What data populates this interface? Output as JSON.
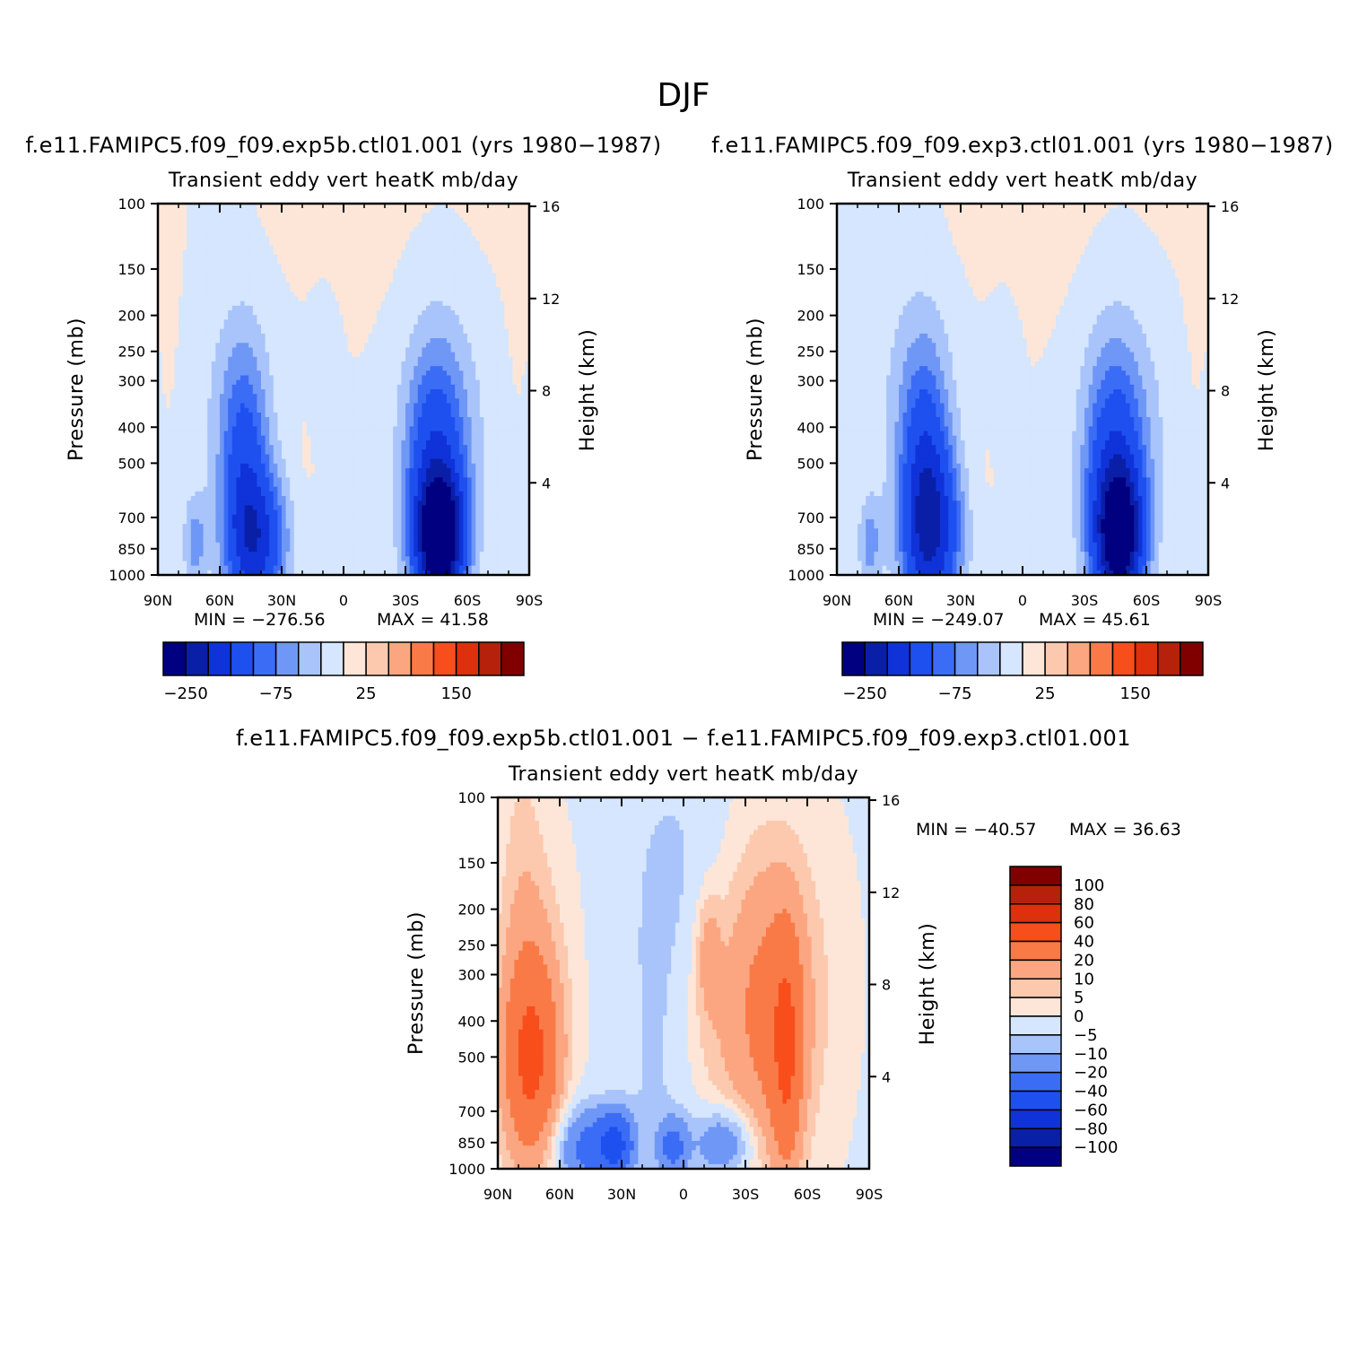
{
  "figure_title": "DJF",
  "colors": {
    "neg": [
      "#000080",
      "#0a1fa8",
      "#0f33d8",
      "#1e50f0",
      "#3b6cf5",
      "#6f97f6",
      "#a9c4fb",
      "#d5e6fe"
    ],
    "pos": [
      "#fde6d8",
      "#fcc9ae",
      "#fba680",
      "#fa7a47",
      "#f84e1c",
      "#dd300c",
      "#b5210a",
      "#800000"
    ]
  },
  "chart_data": [
    {
      "type": "heatmap",
      "name": "control",
      "title": "f.e11.FAMIPC5.f09_f09.exp5b.ctl01.001 (yrs 1980-1987)",
      "title_display": "f.e11.FAMIPC5.f09_f09.exp5b.ctl01.001 (yrs 1980−1987)",
      "variable": "Transient eddy vert heatK mb/day",
      "ylabel": "Pressure (mb)",
      "ylabel_right": "Height (km)",
      "x_ticks": [
        "90N",
        "60N",
        "30N",
        "0",
        "30S",
        "60S",
        "90S"
      ],
      "x_range": [
        90,
        -90
      ],
      "y_ticks": [
        100,
        150,
        200,
        250,
        300,
        400,
        500,
        700,
        850,
        1000
      ],
      "y_range": [
        100,
        1000
      ],
      "y_scale": "log",
      "height_ticks": [
        16,
        12,
        8,
        4
      ],
      "min_text": "MIN = −276.56",
      "max_text": "MAX = 41.58",
      "min": -276.56,
      "max": 41.58,
      "colorbar_labels": [
        "−250",
        "−75",
        "25",
        "150"
      ],
      "colorbar_orientation": "horizontal",
      "colorbar_levels": 16,
      "features": [
        {
          "lat": -47,
          "p": 800,
          "sigma_lat": 8,
          "sigma_lnp": 0.28,
          "value": -280
        },
        {
          "lat": -44,
          "p": 560,
          "sigma_lat": 10,
          "sigma_lnp": 0.55,
          "value": -120
        },
        {
          "lat": -50,
          "p": 390,
          "sigma_lat": 15,
          "sigma_lnp": 0.55,
          "value": -35
        },
        {
          "lat": 42,
          "p": 820,
          "sigma_lat": 10,
          "sigma_lnp": 0.3,
          "value": -150
        },
        {
          "lat": 48,
          "p": 520,
          "sigma_lat": 8,
          "sigma_lnp": 0.5,
          "value": -95
        },
        {
          "lat": 52,
          "p": 350,
          "sigma_lat": 13,
          "sigma_lnp": 0.55,
          "value": -30
        },
        {
          "lat": 72,
          "p": 820,
          "sigma_lat": 4,
          "sigma_lnp": 0.2,
          "value": -60
        },
        {
          "lat": 10,
          "p": 280,
          "sigma_lat": 5,
          "sigma_lnp": 0.3,
          "value": -12
        },
        {
          "lat": 20,
          "p": 520,
          "sigma_lat": 5,
          "sigma_lnp": 0.35,
          "value": 5
        },
        {
          "lat": -20,
          "p": 600,
          "sigma_lat": 3,
          "sigma_lnp": 0.06,
          "value": 4
        },
        {
          "lat": -45,
          "p": 140,
          "sigma_lat": 40,
          "sigma_lnp": 0.45,
          "value": 4
        },
        {
          "lat": 35,
          "p": 120,
          "sigma_lat": 25,
          "sigma_lnp": 0.3,
          "value": 3
        },
        {
          "lat": 83,
          "p": 200,
          "sigma_lat": 4,
          "sigma_lnp": 0.6,
          "value": 3
        },
        {
          "lat": -82,
          "p": 350,
          "sigma_lat": 4,
          "sigma_lnp": 0.7,
          "value": 3
        }
      ]
    },
    {
      "type": "heatmap",
      "name": "experiment",
      "title": "f.e11.FAMIPC5.f09_f09.exp3.ctl01.001 (yrs 1980-1987)",
      "title_display": "f.e11.FAMIPC5.f09_f09.exp3.ctl01.001 (yrs 1980−1987)",
      "variable": "Transient eddy vert heatK mb/day",
      "ylabel": "Pressure (mb)",
      "ylabel_right": "Height (km)",
      "x_ticks": [
        "90N",
        "60N",
        "30N",
        "0",
        "30S",
        "60S",
        "90S"
      ],
      "x_range": [
        90,
        -90
      ],
      "y_ticks": [
        100,
        150,
        200,
        250,
        300,
        400,
        500,
        700,
        850,
        1000
      ],
      "y_range": [
        100,
        1000
      ],
      "y_scale": "log",
      "height_ticks": [
        16,
        12,
        8,
        4
      ],
      "min_text": "MIN = −249.07",
      "max_text": "MAX = 45.61",
      "min": -249.07,
      "max": 45.61,
      "colorbar_labels": [
        "−250",
        "−75",
        "25",
        "150"
      ],
      "colorbar_orientation": "horizontal",
      "colorbar_levels": 16,
      "features": [
        {
          "lat": -47,
          "p": 790,
          "sigma_lat": 8,
          "sigma_lnp": 0.3,
          "value": -250
        },
        {
          "lat": -44,
          "p": 560,
          "sigma_lat": 10,
          "sigma_lnp": 0.55,
          "value": -115
        },
        {
          "lat": -50,
          "p": 390,
          "sigma_lat": 15,
          "sigma_lnp": 0.55,
          "value": -35
        },
        {
          "lat": 44,
          "p": 780,
          "sigma_lat": 10,
          "sigma_lnp": 0.35,
          "value": -160
        },
        {
          "lat": 47,
          "p": 520,
          "sigma_lat": 8,
          "sigma_lnp": 0.5,
          "value": -100
        },
        {
          "lat": 52,
          "p": 330,
          "sigma_lat": 13,
          "sigma_lnp": 0.55,
          "value": -35
        },
        {
          "lat": 74,
          "p": 820,
          "sigma_lat": 4,
          "sigma_lnp": 0.2,
          "value": -60
        },
        {
          "lat": 10,
          "p": 280,
          "sigma_lat": 5,
          "sigma_lnp": 0.3,
          "value": -12
        },
        {
          "lat": 20,
          "p": 530,
          "sigma_lat": 5,
          "sigma_lnp": 0.35,
          "value": 5
        },
        {
          "lat": -20,
          "p": 590,
          "sigma_lat": 4,
          "sigma_lnp": 0.07,
          "value": 4
        },
        {
          "lat": -40,
          "p": 140,
          "sigma_lat": 40,
          "sigma_lnp": 0.45,
          "value": 4
        },
        {
          "lat": 30,
          "p": 120,
          "sigma_lat": 25,
          "sigma_lnp": 0.3,
          "value": 3
        },
        {
          "lat": -82,
          "p": 350,
          "sigma_lat": 4,
          "sigma_lnp": 0.7,
          "value": 3
        }
      ]
    },
    {
      "type": "heatmap",
      "name": "difference",
      "title": "f.e11.FAMIPC5.f09_f09.exp5b.ctl01.001 - f.e11.FAMIPC5.f09_f09.exp3.ctl01.001",
      "title_display": "f.e11.FAMIPC5.f09_f09.exp5b.ctl01.001 − f.e11.FAMIPC5.f09_f09.exp3.ctl01.001",
      "variable": "Transient eddy vert heatK mb/day",
      "ylabel": "Pressure (mb)",
      "ylabel_right": "Height (km)",
      "x_ticks": [
        "90N",
        "60N",
        "30N",
        "0",
        "30S",
        "60S",
        "90S"
      ],
      "x_range": [
        90,
        -90
      ],
      "y_ticks": [
        100,
        150,
        200,
        250,
        300,
        400,
        500,
        700,
        850,
        1000
      ],
      "y_range": [
        100,
        1000
      ],
      "y_scale": "log",
      "height_ticks": [
        16,
        12,
        8,
        4
      ],
      "min_text": "MIN = −40.57",
      "max_text": "MAX = 36.63",
      "min": -40.57,
      "max": 36.63,
      "colorbar_labels": [
        "100",
        "80",
        "60",
        "40",
        "20",
        "10",
        "5",
        "0",
        "−5",
        "−10",
        "−20",
        "−40",
        "−60",
        "−80",
        "−100"
      ],
      "colorbar_orientation": "vertical",
      "colorbar_levels": 16,
      "features": [
        {
          "lat": 74,
          "p": 520,
          "sigma_lat": 9,
          "sigma_lnp": 0.4,
          "value": 35
        },
        {
          "lat": 72,
          "p": 380,
          "sigma_lat": 11,
          "sigma_lnp": 0.6,
          "value": 12
        },
        {
          "lat": 78,
          "p": 200,
          "sigma_lat": 8,
          "sigma_lnp": 0.9,
          "value": 6
        },
        {
          "lat": -50,
          "p": 500,
          "sigma_lat": 5,
          "sigma_lnp": 0.5,
          "value": 30
        },
        {
          "lat": -42,
          "p": 400,
          "sigma_lat": 14,
          "sigma_lnp": 0.6,
          "value": 18
        },
        {
          "lat": -40,
          "p": 300,
          "sigma_lat": 20,
          "sigma_lnp": 0.7,
          "value": 8
        },
        {
          "lat": -12,
          "p": 260,
          "sigma_lat": 4,
          "sigma_lnp": 0.25,
          "value": 12
        },
        {
          "lat": -10,
          "p": 400,
          "sigma_lat": 12,
          "sigma_lnp": 0.5,
          "value": 5
        },
        {
          "lat": 45,
          "p": 880,
          "sigma_lat": 12,
          "sigma_lnp": 0.18,
          "value": -25
        },
        {
          "lat": 33,
          "p": 860,
          "sigma_lat": 5,
          "sigma_lnp": 0.12,
          "value": -40
        },
        {
          "lat": -20,
          "p": 850,
          "sigma_lat": 10,
          "sigma_lnp": 0.15,
          "value": -20
        },
        {
          "lat": 5,
          "p": 870,
          "sigma_lat": 5,
          "sigma_lnp": 0.12,
          "value": -22
        },
        {
          "lat": 10,
          "p": 500,
          "sigma_lat": 15,
          "sigma_lnp": 1.0,
          "value": -6
        },
        {
          "lat": 0,
          "p": 150,
          "sigma_lat": 20,
          "sigma_lnp": 0.6,
          "value": -4
        }
      ]
    }
  ]
}
